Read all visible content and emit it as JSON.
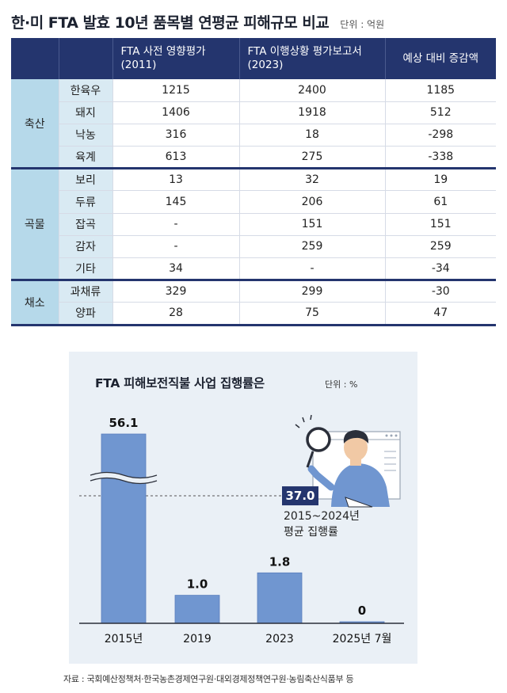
{
  "table": {
    "title": "한·미 FTA 발효 10년 품목별 연평균 피해규모 비교",
    "unit": "단위 : 억원",
    "headers": [
      "",
      "",
      "FTA 사전 영향평가 (2011)",
      "FTA 이행상황 평가보고서 (2023)",
      "예상 대비 증감액"
    ],
    "groups": [
      {
        "name": "축산",
        "rows": [
          {
            "item": "한육우",
            "pre": "1215",
            "post": "2400",
            "diff": "1185"
          },
          {
            "item": "돼지",
            "pre": "1406",
            "post": "1918",
            "diff": "512"
          },
          {
            "item": "낙농",
            "pre": "316",
            "post": "18",
            "diff": "-298"
          },
          {
            "item": "육계",
            "pre": "613",
            "post": "275",
            "diff": "-338"
          }
        ]
      },
      {
        "name": "곡물",
        "rows": [
          {
            "item": "보리",
            "pre": "13",
            "post": "32",
            "diff": "19"
          },
          {
            "item": "두류",
            "pre": "145",
            "post": "206",
            "diff": "61"
          },
          {
            "item": "잡곡",
            "pre": "-",
            "post": "151",
            "diff": "151"
          },
          {
            "item": "감자",
            "pre": "-",
            "post": "259",
            "diff": "259"
          },
          {
            "item": "기타",
            "pre": "34",
            "post": "-",
            "diff": "-34"
          }
        ]
      },
      {
        "name": "채소",
        "rows": [
          {
            "item": "과채류",
            "pre": "329",
            "post": "299",
            "diff": "-30"
          },
          {
            "item": "양파",
            "pre": "28",
            "post": "75",
            "diff": "47"
          }
        ]
      }
    ]
  },
  "chart_data": {
    "type": "bar",
    "title": "FTA 피해보전직불 사업 집행률은",
    "unit": "단위 : %",
    "categories": [
      "2015년",
      "2019",
      "2023",
      "2025년 7월"
    ],
    "values": [
      56.1,
      1.0,
      1.8,
      0
    ],
    "value_labels": [
      "56.1",
      "1.0",
      "1.8",
      "0"
    ],
    "axis_break": true,
    "reference_line": {
      "value": 37.0,
      "label": "37.0",
      "caption_line1": "2015~2024년",
      "caption_line2": "평균 집행률"
    },
    "colors": {
      "bar": "#7096d0",
      "bar_edge": "#5a7fbd",
      "ref_box": "#24356e",
      "panel": "#eaf0f6"
    }
  },
  "source": "자료 : 국회예산정책처·한국농촌경제연구원·대외경제정책연구원·농림축산식품부 등"
}
